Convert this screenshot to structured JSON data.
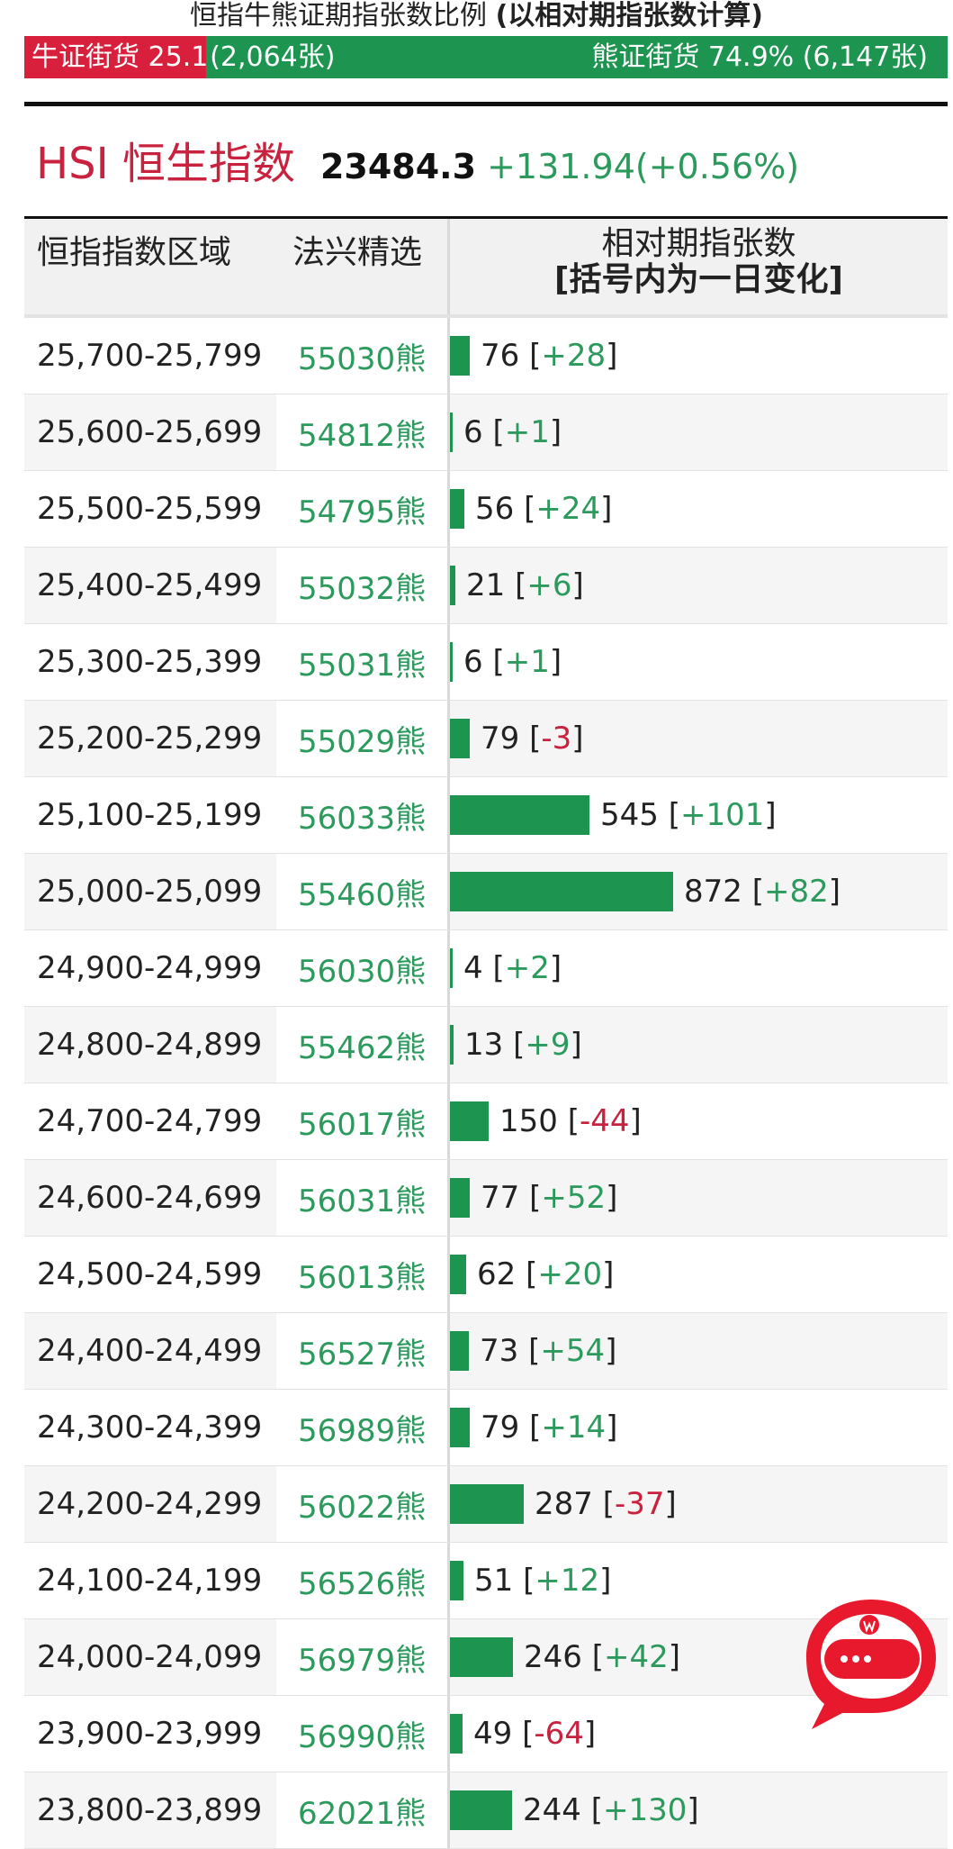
{
  "header": {
    "title_main": "恒指牛熊证期指张数比例 ",
    "title_bold": "(以相对期指张数计算)",
    "bull_label": "牛证街货 25.1%",
    "bull_count": "(2,064张)",
    "bear_label": "熊证街货 74.9% (6,147张)",
    "bull_ratio": 0.251,
    "bull_color": "#d8203c",
    "bear_color": "#1d9551"
  },
  "index": {
    "name": "HSI 恒生指数",
    "value": "23484.3",
    "change": "+131.94(+0.56%)"
  },
  "table": {
    "headers": {
      "range": "恒指指数区域",
      "pick": "法兴精选",
      "count_line1": "相对期指张数",
      "count_line2": "[括号内为一日变化]"
    },
    "max_count": 872,
    "rows": [
      {
        "range": "25,700-25,799",
        "code": "55030熊",
        "count": 76,
        "count_text": "76",
        "change": "+28"
      },
      {
        "range": "25,600-25,699",
        "code": "54812熊",
        "count": 6,
        "count_text": "6",
        "change": "+1"
      },
      {
        "range": "25,500-25,599",
        "code": "54795熊",
        "count": 56,
        "count_text": "56",
        "change": "+24"
      },
      {
        "range": "25,400-25,499",
        "code": "55032熊",
        "count": 21,
        "count_text": "21",
        "change": "+6"
      },
      {
        "range": "25,300-25,399",
        "code": "55031熊",
        "count": 6,
        "count_text": "6",
        "change": "+1"
      },
      {
        "range": "25,200-25,299",
        "code": "55029熊",
        "count": 79,
        "count_text": "79",
        "change": "-3"
      },
      {
        "range": "25,100-25,199",
        "code": "56033熊",
        "count": 545,
        "count_text": "545",
        "change": "+101"
      },
      {
        "range": "25,000-25,099",
        "code": "55460熊",
        "count": 872,
        "count_text": "872",
        "change": "+82"
      },
      {
        "range": "24,900-24,999",
        "code": "56030熊",
        "count": 4,
        "count_text": "4",
        "change": "+2"
      },
      {
        "range": "24,800-24,899",
        "code": "55462熊",
        "count": 13,
        "count_text": "13",
        "change": "+9"
      },
      {
        "range": "24,700-24,799",
        "code": "56017熊",
        "count": 150,
        "count_text": "150",
        "change": "-44"
      },
      {
        "range": "24,600-24,699",
        "code": "56031熊",
        "count": 77,
        "count_text": "77",
        "change": "+52"
      },
      {
        "range": "24,500-24,599",
        "code": "56013熊",
        "count": 62,
        "count_text": "62",
        "change": "+20"
      },
      {
        "range": "24,400-24,499",
        "code": "56527熊",
        "count": 73,
        "count_text": "73",
        "change": "+54"
      },
      {
        "range": "24,300-24,399",
        "code": "56989熊",
        "count": 79,
        "count_text": "79",
        "change": "+14"
      },
      {
        "range": "24,200-24,299",
        "code": "56022熊",
        "count": 287,
        "count_text": "287",
        "change": "-37"
      },
      {
        "range": "24,100-24,199",
        "code": "56526熊",
        "count": 51,
        "count_text": "51",
        "change": "+12"
      },
      {
        "range": "24,000-24,099",
        "code": "56979熊",
        "count": 246,
        "count_text": "246",
        "change": "+42"
      },
      {
        "range": "23,900-23,999",
        "code": "56990熊",
        "count": 49,
        "count_text": "49",
        "change": "-64"
      },
      {
        "range": "23,800-23,899",
        "code": "62021熊",
        "count": 244,
        "count_text": "244",
        "change": "+130"
      }
    ]
  },
  "chat_button": {
    "icon": "chat-bubble-icon",
    "badge_icon": "w-logo-icon"
  }
}
